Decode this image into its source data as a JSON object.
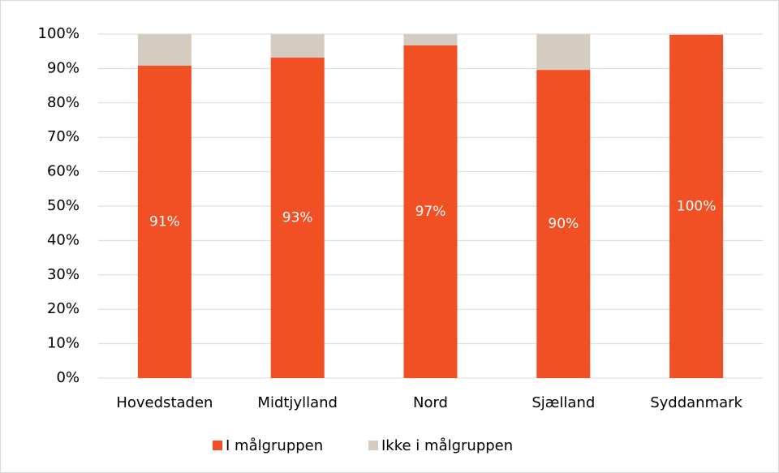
{
  "chart_data": {
    "type": "stacked_bar",
    "categories": [
      "Hovedstaden",
      "Midtjylland",
      "Nord",
      "Sjælland",
      "Syddanmark"
    ],
    "series": [
      {
        "name": "I målgruppen",
        "color": "#f05023",
        "values": [
          90.8,
          93.2,
          96.7,
          89.6,
          99.8
        ],
        "value_labels": [
          "91%",
          "93%",
          "97%",
          "90%",
          "100%"
        ]
      },
      {
        "name": "Ikke i målgruppen",
        "color": "#d5cbc0",
        "values": [
          9.2,
          6.8,
          3.3,
          10.4,
          0.2
        ]
      }
    ],
    "ylim": [
      0,
      100
    ],
    "yticks": [
      {
        "value": 0,
        "label": "0%"
      },
      {
        "value": 10,
        "label": "10%"
      },
      {
        "value": 20,
        "label": "20%"
      },
      {
        "value": 30,
        "label": "30%"
      },
      {
        "value": 40,
        "label": "40%"
      },
      {
        "value": 50,
        "label": "50%"
      },
      {
        "value": 60,
        "label": "60%"
      },
      {
        "value": 70,
        "label": "70%"
      },
      {
        "value": 80,
        "label": "80%"
      },
      {
        "value": 90,
        "label": "90%"
      },
      {
        "value": 100,
        "label": "100%"
      }
    ],
    "grid": true,
    "legend": "bottom"
  }
}
